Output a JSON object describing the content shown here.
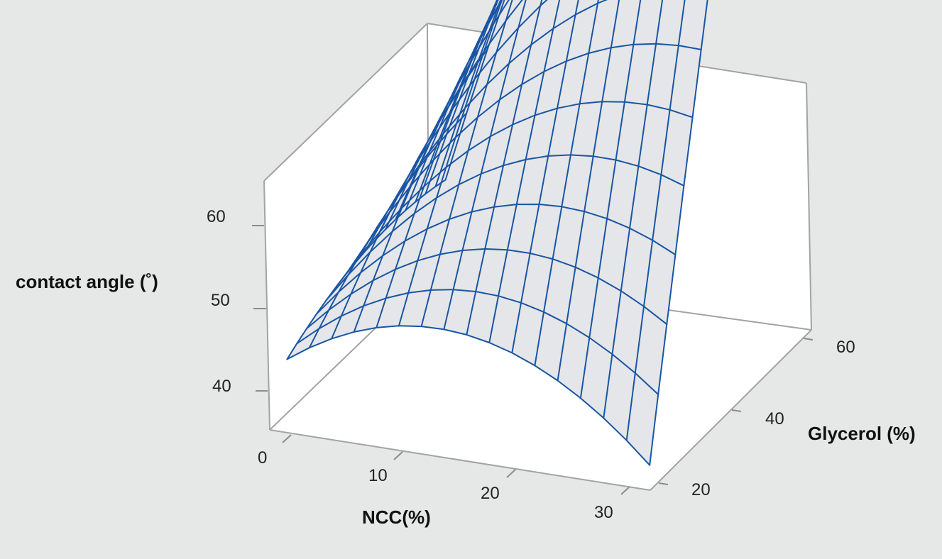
{
  "chart_data": {
    "type": "surface",
    "xlabel": "NCC(%)",
    "ylabel": "Glycerol (%)",
    "zlabel": "contact angle (˚)",
    "x_ticks": [
      "0",
      "10",
      "20",
      "30"
    ],
    "y_ticks": [
      "20",
      "40",
      "60"
    ],
    "z_ticks": [
      "40",
      "50",
      "60"
    ],
    "xlim": [
      0,
      30
    ],
    "ylim": [
      15,
      60
    ],
    "zlim": [
      36.5,
      65.5
    ],
    "grid": {
      "x": [
        1.5,
        30
      ],
      "y": [
        15,
        60
      ],
      "resolution": 16
    },
    "model": "z = 40.2 + 0.2778*y + 0.08*x*y - 0.0444*x^2 - 0.0044*y^2",
    "colors": {
      "mesh": "#1a55a3",
      "surface_fill": "#e4e6e9",
      "background": "#e6e7e7",
      "box": "#a3a3a3"
    },
    "legend": "none"
  }
}
